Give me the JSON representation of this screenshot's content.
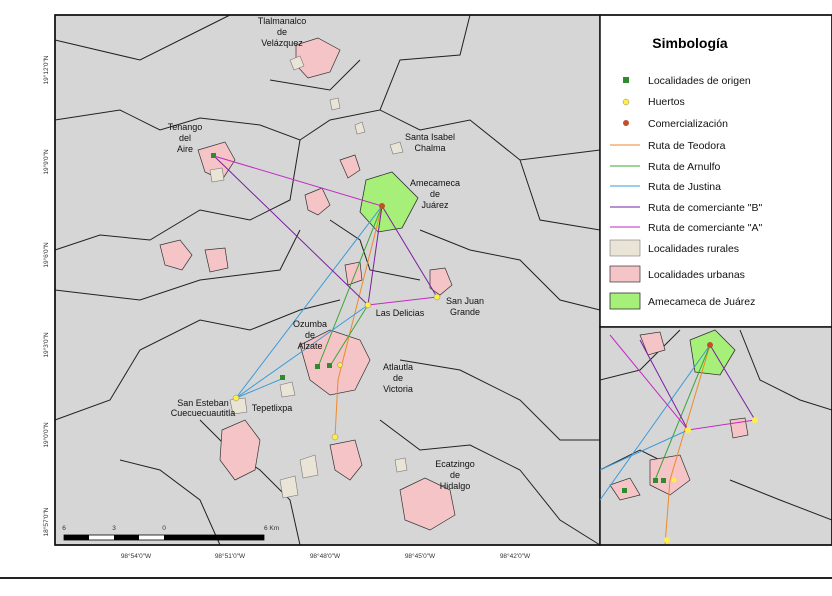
{
  "legend": {
    "title": "Simbología",
    "items": [
      "Localidades de origen",
      "Huertos",
      "Comercialización",
      "Ruta de Teodora",
      "Ruta de Arnulfo",
      "Ruta de Justina",
      "Ruta de comerciante \"B\"",
      "Ruta de comerciante \"A\"",
      "Localidades rurales",
      "Localidades urbanas",
      "Amecameca de Juárez"
    ]
  },
  "places": [
    {
      "lines": [
        "Tlalmanalco",
        "de",
        "Velázquez"
      ]
    },
    {
      "lines": [
        "Tenango",
        "del",
        "Aire"
      ]
    },
    {
      "lines": [
        "Santa Isabel",
        "Chalma"
      ]
    },
    {
      "lines": [
        "Amecameca",
        "de",
        "Juárez"
      ]
    },
    {
      "lines": [
        "San Juan",
        "Grande"
      ]
    },
    {
      "lines": [
        "Las Delicias"
      ]
    },
    {
      "lines": [
        "Ozumba",
        "de",
        "Alzate"
      ]
    },
    {
      "lines": [
        "Atlautla",
        "de",
        "Victoria"
      ]
    },
    {
      "lines": [
        "San Esteban",
        "Cuecuecuautitla"
      ]
    },
    {
      "lines": [
        "Tepetlixpa"
      ]
    },
    {
      "lines": [
        "Ecatzingo",
        "de",
        "Hidalgo"
      ]
    }
  ],
  "latitudes": [
    "19°12'0\"N",
    "19°9'0\"N",
    "19°6'0\"N",
    "19°3'0\"N",
    "19°0'0\"N",
    "18°57'0\"N"
  ],
  "longitudes": [
    "98°54'0\"W",
    "98°51'0\"W",
    "98°48'0\"W",
    "98°45'0\"W",
    "98°42'0\"W"
  ],
  "scale_labels": [
    "6",
    "3",
    "0",
    "6 Km"
  ]
}
